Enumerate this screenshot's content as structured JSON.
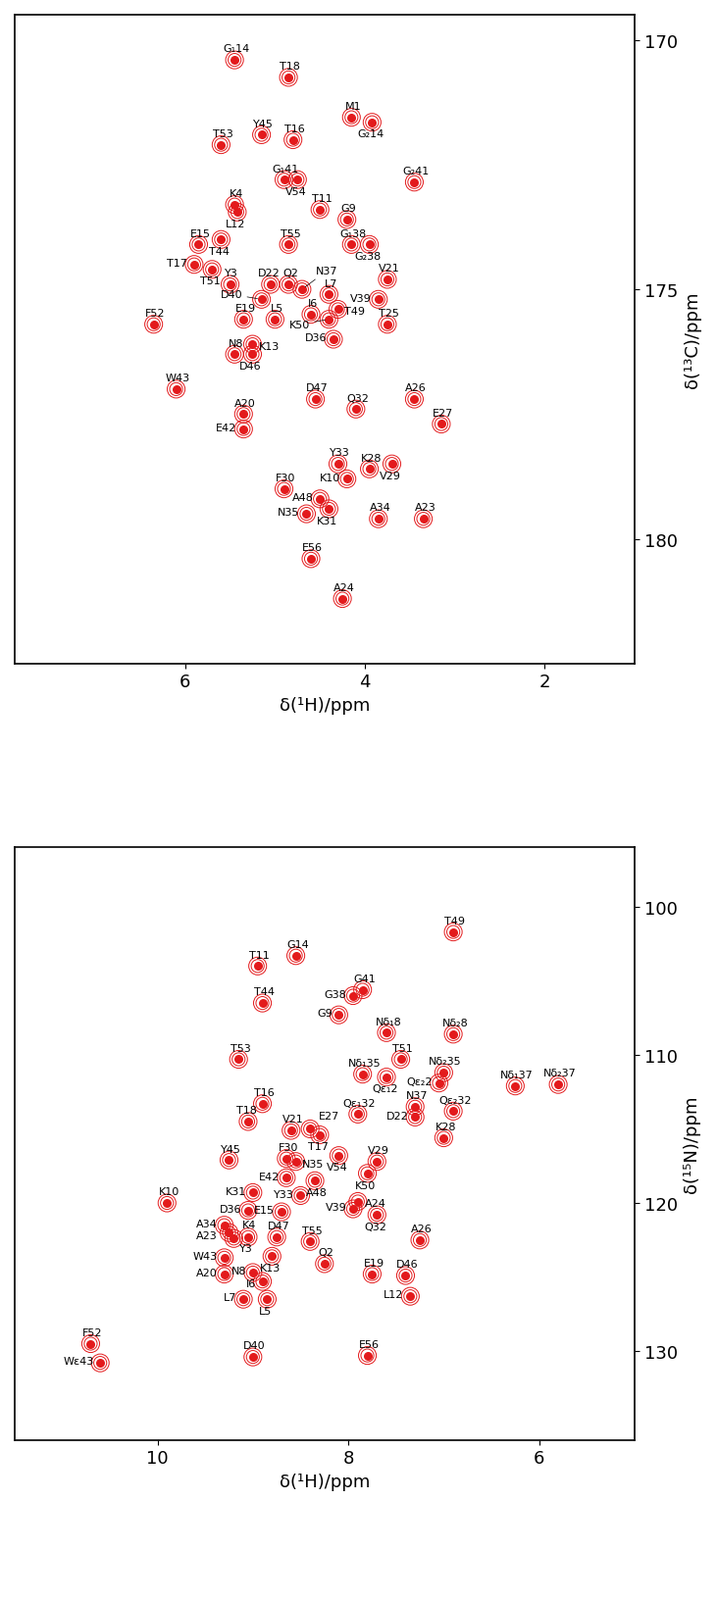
{
  "chart_data": [
    {
      "type": "scatter",
      "x_label": "δ(¹H)/ppm",
      "y_label": "δ(¹³C)/ppm",
      "xlim": [
        7.9,
        1.0
      ],
      "ylim": [
        182.5,
        169.5
      ],
      "xticks": [
        6,
        4,
        2
      ],
      "yticks": [
        170,
        175,
        180
      ],
      "color": "#e31a1c",
      "marker": "o",
      "labels": [
        "M1",
        "Q2",
        "Y3",
        "K4",
        "L5",
        "I6",
        "L7",
        "N8",
        "G9",
        "K10",
        "T11",
        "L12",
        "K13",
        "G₁14",
        "G₂14",
        "E15",
        "T16",
        "T17",
        "T18",
        "E19",
        "A20",
        "V21",
        "D22",
        "A23",
        "A24",
        "T25",
        "A26",
        "E27",
        "K28",
        "V29",
        "F30",
        "K31",
        "Q32",
        "Y33",
        "A34",
        "N35",
        "D36",
        "N37",
        "G₁38",
        "G₂38",
        "V39",
        "D40",
        "G₁41",
        "G₂41",
        "E42",
        "W43",
        "T44",
        "Y45",
        "D46",
        "D47",
        "A48",
        "T49",
        "K50",
        "T51",
        "F52",
        "T53",
        "V54",
        "T55",
        "E56"
      ],
      "x": [
        4.15,
        4.85,
        5.5,
        5.45,
        5.0,
        4.6,
        4.4,
        5.45,
        4.2,
        4.2,
        4.5,
        5.42,
        5.25,
        5.45,
        3.92,
        5.85,
        4.8,
        5.9,
        4.85,
        5.35,
        5.35,
        3.75,
        5.05,
        3.35,
        4.25,
        3.75,
        3.45,
        3.15,
        3.95,
        3.7,
        4.9,
        4.4,
        4.1,
        4.3,
        3.85,
        4.65,
        4.35,
        4.7,
        4.15,
        3.95,
        3.85,
        5.15,
        4.9,
        3.45,
        5.35,
        6.1,
        5.6,
        5.15,
        5.25,
        4.55,
        4.5,
        4.3,
        4.4,
        5.7,
        6.35,
        5.6,
        4.75,
        4.85,
        4.6
      ],
      "values": [
        171.55,
        174.9,
        174.9,
        173.3,
        175.6,
        175.5,
        175.1,
        176.3,
        173.6,
        178.8,
        173.4,
        173.45,
        176.1,
        170.4,
        171.65,
        174.1,
        172.0,
        174.5,
        170.75,
        175.6,
        177.5,
        174.8,
        174.9,
        179.6,
        181.2,
        175.7,
        177.2,
        177.7,
        178.6,
        178.5,
        179.0,
        179.4,
        177.4,
        178.5,
        179.6,
        179.5,
        176.0,
        175.0,
        174.1,
        174.1,
        175.2,
        175.2,
        172.8,
        172.85,
        177.8,
        177.0,
        174.0,
        171.9,
        176.3,
        177.2,
        179.2,
        175.4,
        175.6,
        174.6,
        175.7,
        172.1,
        172.8,
        174.1,
        180.4
      ]
    },
    {
      "type": "scatter",
      "x_label": "δ(¹H)/ppm",
      "y_label": "δ(¹⁵N)/ppm",
      "xlim": [
        11.5,
        5.0
      ],
      "ylim": [
        136.0,
        96.0
      ],
      "xticks": [
        10,
        8,
        6
      ],
      "yticks": [
        100,
        110,
        120,
        130
      ],
      "color": "#e31a1c",
      "marker": "o",
      "labels": [
        "T49",
        "G14",
        "T11",
        "T44",
        "G38",
        "G41",
        "G9",
        "Nδ₁8",
        "Nδ₂8",
        "T53",
        "T51",
        "Nδ₁35",
        "Qε₁2",
        "Nδ₂35",
        "Qε₂2",
        "Nδ₁37",
        "Nδ₂37",
        "Qε₁32",
        "Qε₂32",
        "N37",
        "D22",
        "T16",
        "T18",
        "V21",
        "E27",
        "T17",
        "K28",
        "Y45",
        "F30",
        "N35",
        "V54",
        "V29",
        "K50",
        "E42",
        "A48",
        "K31",
        "Y33",
        "K10",
        "D36",
        "E15",
        "A24",
        "V39",
        "Q32",
        "A34",
        "A23",
        "K4",
        "Y3",
        "D47",
        "T55",
        "A26",
        "W43",
        "K13",
        "Q2",
        "E19",
        "D46",
        "A20",
        "N8",
        "I6",
        "L12",
        "L7",
        "L5",
        "F52",
        "Wε43",
        "D40",
        "E56"
      ],
      "x": [
        6.9,
        8.55,
        8.95,
        8.9,
        7.95,
        7.85,
        8.1,
        7.6,
        6.9,
        9.15,
        7.45,
        7.85,
        7.6,
        7.0,
        7.05,
        6.25,
        5.8,
        7.9,
        6.9,
        7.3,
        7.3,
        8.9,
        9.05,
        8.6,
        8.4,
        8.3,
        7.0,
        9.25,
        8.65,
        8.55,
        8.1,
        7.7,
        7.8,
        8.65,
        8.35,
        9.0,
        8.5,
        9.9,
        9.05,
        8.7,
        7.9,
        7.95,
        7.7,
        9.3,
        9.25,
        9.2,
        9.05,
        8.75,
        8.4,
        7.25,
        9.3,
        8.8,
        8.25,
        7.75,
        7.4,
        9.3,
        9.0,
        8.9,
        7.35,
        9.1,
        8.85,
        10.7,
        10.6,
        9.0,
        7.8
      ],
      "values": [
        101.7,
        103.3,
        104.0,
        106.5,
        106.0,
        105.6,
        107.3,
        108.5,
        108.6,
        110.3,
        110.3,
        111.3,
        111.5,
        111.2,
        111.9,
        112.1,
        112.0,
        114.0,
        113.8,
        113.5,
        114.2,
        113.3,
        114.5,
        115.1,
        115.0,
        115.4,
        115.6,
        117.1,
        117.0,
        117.2,
        116.8,
        117.2,
        118.0,
        118.3,
        118.5,
        119.3,
        119.5,
        120.0,
        120.5,
        120.6,
        119.9,
        120.4,
        120.8,
        121.5,
        122.0,
        122.4,
        122.3,
        122.3,
        122.6,
        122.5,
        123.7,
        123.6,
        124.1,
        124.8,
        124.9,
        124.8,
        124.7,
        125.3,
        126.3,
        126.5,
        126.5,
        129.5,
        130.8,
        130.4,
        130.3
      ]
    }
  ]
}
